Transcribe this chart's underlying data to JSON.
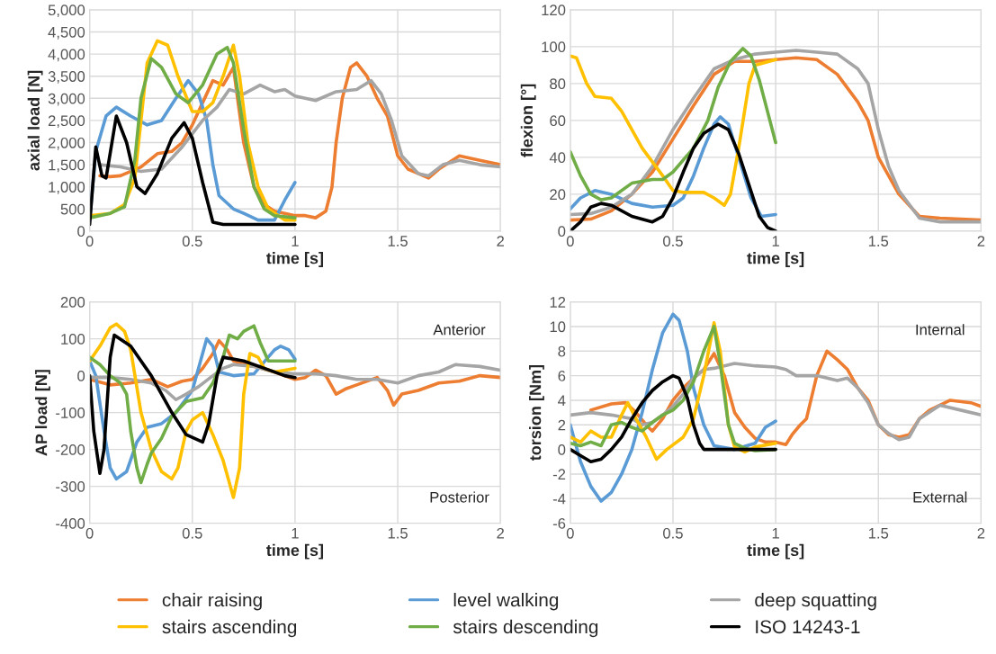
{
  "chart_data": [
    {
      "type": "line",
      "xlabel": "time [s]",
      "ylabel": "axial load [N]",
      "xlim": [
        0,
        2
      ],
      "xticks": [
        0,
        0.5,
        1,
        1.5,
        2
      ],
      "ylim": [
        0,
        5000
      ],
      "yticks": [
        0,
        500,
        {
          "value": 1000,
          "label": "1,000"
        },
        {
          "value": 1500,
          "label": "1,500"
        },
        {
          "value": 2000,
          "label": "2,000"
        },
        {
          "value": 2500,
          "label": "2,500"
        },
        {
          "value": 3000,
          "label": "3,000"
        },
        {
          "value": 3500,
          "label": "3,500"
        },
        {
          "value": 4000,
          "label": "4,000"
        },
        {
          "value": 4500,
          "label": "4,500"
        },
        {
          "value": 5000,
          "label": "5,000"
        }
      ],
      "grid": true,
      "legend": "bottom",
      "series": [
        {
          "name": "chair raising",
          "color": "#ed7d31",
          "x": [
            0.05,
            0.1,
            0.15,
            0.25,
            0.33,
            0.4,
            0.45,
            0.5,
            0.6,
            0.65,
            0.7,
            0.72,
            0.75,
            0.8,
            0.85,
            0.9,
            1.0,
            1.05,
            1.1,
            1.15,
            1.18,
            1.2,
            1.23,
            1.27,
            1.3,
            1.35,
            1.4,
            1.45,
            1.5,
            1.55,
            1.6,
            1.65,
            1.7,
            1.8,
            1.9,
            2.0
          ],
          "values": [
            1250,
            1230,
            1250,
            1450,
            1750,
            1800,
            2000,
            2400,
            3400,
            3300,
            3700,
            3000,
            2000,
            1000,
            600,
            450,
            350,
            350,
            300,
            450,
            1000,
            2000,
            3000,
            3700,
            3800,
            3500,
            3000,
            2600,
            1700,
            1400,
            1300,
            1200,
            1400,
            1700,
            1600,
            1500
          ]
        },
        {
          "name": "level walking",
          "color": "#5b9bd5",
          "x": [
            0,
            0.03,
            0.08,
            0.13,
            0.2,
            0.28,
            0.35,
            0.42,
            0.48,
            0.53,
            0.57,
            0.6,
            0.63,
            0.7,
            0.75,
            0.82,
            0.9,
            0.95,
            1.0
          ],
          "values": [
            250,
            1800,
            2600,
            2800,
            2600,
            2400,
            2500,
            3000,
            3400,
            3100,
            2500,
            1500,
            800,
            500,
            400,
            250,
            250,
            700,
            1100
          ]
        },
        {
          "name": "deep squatting",
          "color": "#a5a5a5",
          "x": [
            0.05,
            0.15,
            0.25,
            0.35,
            0.45,
            0.55,
            0.62,
            0.68,
            0.75,
            0.83,
            0.9,
            0.95,
            1.0,
            1.1,
            1.2,
            1.3,
            1.37,
            1.42,
            1.47,
            1.52,
            1.6,
            1.65,
            1.72,
            1.8,
            1.9,
            2.0
          ],
          "values": [
            1500,
            1450,
            1350,
            1400,
            1900,
            2500,
            2800,
            3200,
            3100,
            3300,
            3150,
            3200,
            3050,
            2950,
            3150,
            3200,
            3400,
            3100,
            2500,
            1700,
            1300,
            1250,
            1500,
            1600,
            1500,
            1450
          ]
        },
        {
          "name": "stairs ascending",
          "color": "#ffc000",
          "x": [
            0,
            0.1,
            0.17,
            0.22,
            0.25,
            0.28,
            0.33,
            0.38,
            0.43,
            0.5,
            0.55,
            0.6,
            0.65,
            0.7,
            0.73,
            0.77,
            0.82,
            0.87,
            0.95,
            1.0
          ],
          "values": [
            350,
            400,
            600,
            1200,
            2500,
            3800,
            4300,
            4200,
            3500,
            2700,
            2700,
            2900,
            3500,
            4200,
            3500,
            2000,
            1000,
            500,
            250,
            250
          ]
        },
        {
          "name": "stairs descending",
          "color": "#70ad47",
          "x": [
            0,
            0.1,
            0.17,
            0.22,
            0.25,
            0.3,
            0.35,
            0.42,
            0.48,
            0.55,
            0.62,
            0.67,
            0.7,
            0.75,
            0.8,
            0.85,
            0.9,
            1.0
          ],
          "values": [
            300,
            400,
            550,
            1600,
            3000,
            3900,
            3700,
            3100,
            2900,
            3300,
            4000,
            4150,
            3800,
            2300,
            1000,
            500,
            350,
            300
          ]
        },
        {
          "name": "ISO 14243-1",
          "color": "#000000",
          "x": [
            0,
            0.03,
            0.06,
            0.08,
            0.13,
            0.18,
            0.23,
            0.27,
            0.33,
            0.4,
            0.46,
            0.5,
            0.55,
            0.6,
            0.65,
            1.0
          ],
          "values": [
            150,
            1900,
            1250,
            1200,
            2600,
            2000,
            1000,
            850,
            1300,
            2100,
            2450,
            2100,
            1100,
            200,
            150,
            150
          ]
        }
      ]
    },
    {
      "type": "line",
      "xlabel": "time [s]",
      "ylabel": "flexion [°]",
      "xlim": [
        0,
        2
      ],
      "xticks": [
        0,
        0.5,
        1,
        1.5,
        2
      ],
      "ylim": [
        0,
        120
      ],
      "yticks": [
        0,
        20,
        40,
        60,
        80,
        100,
        120
      ],
      "grid": true,
      "legend": "bottom",
      "series": [
        {
          "name": "chair raising",
          "color": "#ed7d31",
          "x": [
            0,
            0.1,
            0.2,
            0.3,
            0.4,
            0.5,
            0.6,
            0.7,
            0.8,
            0.9,
            1.0,
            1.1,
            1.2,
            1.3,
            1.4,
            1.45,
            1.5,
            1.55,
            1.6,
            1.7,
            1.8,
            2.0
          ],
          "values": [
            6,
            6.5,
            11,
            20,
            32,
            50,
            68,
            85,
            92,
            92,
            93,
            94,
            93,
            85,
            70,
            60,
            40,
            30,
            20,
            8,
            7,
            6
          ]
        },
        {
          "name": "level walking",
          "color": "#5b9bd5",
          "x": [
            0,
            0.05,
            0.12,
            0.2,
            0.3,
            0.4,
            0.5,
            0.55,
            0.6,
            0.65,
            0.7,
            0.73,
            0.77,
            0.82,
            0.88,
            0.93,
            1.0
          ],
          "values": [
            12,
            18,
            22,
            20,
            15,
            13,
            14,
            18,
            30,
            45,
            58,
            62,
            58,
            40,
            18,
            8,
            9
          ]
        },
        {
          "name": "deep squatting",
          "color": "#a5a5a5",
          "x": [
            0,
            0.1,
            0.2,
            0.3,
            0.4,
            0.5,
            0.6,
            0.7,
            0.8,
            0.9,
            1.0,
            1.1,
            1.2,
            1.3,
            1.4,
            1.45,
            1.5,
            1.55,
            1.6,
            1.7,
            1.8,
            2.0
          ],
          "values": [
            9,
            9.5,
            13,
            20,
            35,
            55,
            72,
            88,
            93,
            96,
            97,
            98,
            97,
            96,
            88,
            80,
            55,
            35,
            22,
            7,
            5,
            5
          ]
        },
        {
          "name": "stairs ascending",
          "color": "#ffc000",
          "x": [
            0,
            0.03,
            0.08,
            0.12,
            0.2,
            0.25,
            0.35,
            0.45,
            0.5,
            0.55,
            0.65,
            0.7,
            0.75,
            0.78,
            0.82,
            0.87,
            0.9,
            1.0
          ],
          "values": [
            95,
            94,
            80,
            73,
            72,
            65,
            45,
            30,
            22,
            21,
            21,
            18,
            14,
            20,
            45,
            80,
            90,
            93
          ]
        },
        {
          "name": "stairs descending",
          "color": "#70ad47",
          "x": [
            0,
            0.05,
            0.1,
            0.15,
            0.2,
            0.3,
            0.4,
            0.45,
            0.5,
            0.6,
            0.67,
            0.72,
            0.78,
            0.84,
            0.88,
            0.92,
            0.96,
            1.0
          ],
          "values": [
            43,
            30,
            20,
            17,
            18,
            26,
            28,
            28,
            32,
            45,
            60,
            78,
            92,
            99,
            95,
            82,
            65,
            48
          ]
        },
        {
          "name": "ISO 14243-1",
          "color": "#000000",
          "x": [
            0,
            0.05,
            0.1,
            0.15,
            0.2,
            0.3,
            0.4,
            0.45,
            0.5,
            0.55,
            0.6,
            0.65,
            0.72,
            0.77,
            0.82,
            0.87,
            0.92,
            0.96,
            1.0
          ],
          "values": [
            0,
            5,
            13,
            15,
            14,
            8,
            5,
            8,
            18,
            32,
            45,
            53,
            58,
            55,
            42,
            25,
            8,
            2,
            0
          ]
        }
      ]
    },
    {
      "type": "line",
      "xlabel": "time [s]",
      "ylabel": "AP load [N]",
      "xlim": [
        0,
        2
      ],
      "xticks": [
        0,
        0.5,
        1,
        1.5,
        2
      ],
      "ylim": [
        -400,
        200
      ],
      "yticks": [
        -400,
        -300,
        -200,
        -100,
        0,
        100,
        200
      ],
      "grid": true,
      "legend": "bottom",
      "annotations": [
        "Anterior",
        "Posterior"
      ],
      "series": [
        {
          "name": "chair raising",
          "color": "#ed7d31",
          "x": [
            0,
            0.1,
            0.2,
            0.3,
            0.38,
            0.45,
            0.5,
            0.55,
            0.6,
            0.63,
            0.67,
            0.7,
            0.8,
            0.9,
            1.0,
            1.05,
            1.1,
            1.15,
            1.2,
            1.25,
            1.3,
            1.4,
            1.45,
            1.48,
            1.52,
            1.6,
            1.7,
            1.8,
            1.9,
            2.0
          ],
          "values": [
            -10,
            -25,
            -20,
            -10,
            -30,
            -15,
            -10,
            20,
            60,
            95,
            70,
            40,
            25,
            10,
            -10,
            -5,
            15,
            0,
            -50,
            -35,
            -25,
            -5,
            -40,
            -80,
            -50,
            -40,
            -20,
            -15,
            0,
            -5
          ]
        },
        {
          "name": "level walking",
          "color": "#5b9bd5",
          "x": [
            0,
            0.03,
            0.07,
            0.1,
            0.13,
            0.18,
            0.23,
            0.28,
            0.35,
            0.42,
            0.5,
            0.53,
            0.57,
            0.6,
            0.63,
            0.7,
            0.8,
            0.9,
            0.93,
            0.97,
            1.0
          ],
          "values": [
            40,
            0,
            -150,
            -250,
            -280,
            -260,
            -180,
            -140,
            -130,
            -100,
            -40,
            20,
            100,
            80,
            10,
            0,
            5,
            70,
            80,
            70,
            45
          ]
        },
        {
          "name": "deep squatting",
          "color": "#a5a5a5",
          "x": [
            0,
            0.1,
            0.2,
            0.3,
            0.37,
            0.42,
            0.47,
            0.53,
            0.6,
            0.65,
            0.7,
            0.8,
            0.9,
            1.0,
            1.1,
            1.2,
            1.3,
            1.4,
            1.5,
            1.6,
            1.7,
            1.78,
            1.9,
            2.0
          ],
          "values": [
            -5,
            -5,
            -10,
            -20,
            -40,
            -65,
            -50,
            -30,
            0,
            20,
            30,
            25,
            10,
            5,
            5,
            0,
            -10,
            -10,
            -20,
            0,
            10,
            30,
            25,
            15
          ]
        },
        {
          "name": "stairs ascending",
          "color": "#ffc000",
          "x": [
            0,
            0.05,
            0.1,
            0.13,
            0.17,
            0.2,
            0.25,
            0.3,
            0.35,
            0.4,
            0.43,
            0.47,
            0.5,
            0.55,
            0.6,
            0.65,
            0.7,
            0.73,
            0.75,
            0.78,
            0.82,
            0.85,
            0.9,
            1.0
          ],
          "values": [
            40,
            80,
            130,
            140,
            120,
            70,
            -100,
            -200,
            -260,
            -280,
            -250,
            -150,
            -120,
            -100,
            -160,
            -230,
            -330,
            -250,
            -50,
            60,
            50,
            20,
            10,
            20
          ]
        },
        {
          "name": "stairs descending",
          "color": "#70ad47",
          "x": [
            0,
            0.05,
            0.1,
            0.15,
            0.18,
            0.2,
            0.23,
            0.25,
            0.28,
            0.3,
            0.35,
            0.4,
            0.47,
            0.55,
            0.6,
            0.65,
            0.68,
            0.72,
            0.75,
            0.8,
            0.83,
            0.87,
            0.92,
            1.0
          ],
          "values": [
            50,
            30,
            0,
            -20,
            -50,
            -150,
            -250,
            -290,
            -240,
            -210,
            -170,
            -110,
            -70,
            -60,
            -20,
            50,
            110,
            100,
            120,
            135,
            90,
            40,
            40,
            40
          ]
        },
        {
          "name": "ISO 14243-1",
          "color": "#000000",
          "x": [
            0,
            0.02,
            0.05,
            0.07,
            0.1,
            0.12,
            0.2,
            0.3,
            0.4,
            0.47,
            0.55,
            0.58,
            0.62,
            0.65,
            0.75,
            0.85,
            0.95,
            1.0
          ],
          "values": [
            0,
            -150,
            -265,
            -200,
            50,
            110,
            80,
            0,
            -100,
            -160,
            -180,
            -130,
            0,
            50,
            40,
            20,
            0,
            -5
          ]
        }
      ]
    },
    {
      "type": "line",
      "xlabel": "time [s]",
      "ylabel": "torsion [Nm]",
      "xlim": [
        0,
        2
      ],
      "xticks": [
        0,
        0.5,
        1,
        1.5,
        2
      ],
      "ylim": [
        -6,
        12
      ],
      "yticks": [
        -6,
        -4,
        -2,
        0,
        2,
        4,
        6,
        8,
        10,
        12
      ],
      "grid": true,
      "legend": "bottom",
      "annotations": [
        "Internal",
        "External"
      ],
      "series": [
        {
          "name": "chair raising",
          "color": "#ed7d31",
          "x": [
            0.1,
            0.2,
            0.27,
            0.32,
            0.38,
            0.4,
            0.45,
            0.5,
            0.55,
            0.6,
            0.65,
            0.7,
            0.75,
            0.8,
            0.85,
            0.9,
            0.95,
            1.0,
            1.05,
            1.08,
            1.12,
            1.15,
            1.2,
            1.25,
            1.3,
            1.35,
            1.4,
            1.45,
            1.5,
            1.55,
            1.6,
            1.65,
            1.7,
            1.75,
            1.85,
            1.95,
            2.0
          ],
          "values": [
            3.2,
            3.7,
            3.8,
            3.0,
            1.8,
            1.5,
            2.5,
            4,
            5,
            5.8,
            6.5,
            7.8,
            6,
            3,
            1.8,
            0.9,
            0.6,
            0.6,
            0.4,
            1.2,
            2,
            2.5,
            6,
            8,
            7.3,
            6.5,
            5,
            4,
            2,
            1.2,
            1.0,
            1.2,
            2.5,
            3.2,
            4.0,
            3.8,
            3.5
          ]
        },
        {
          "name": "level walking",
          "color": "#5b9bd5",
          "x": [
            0,
            0.05,
            0.1,
            0.15,
            0.2,
            0.25,
            0.3,
            0.35,
            0.4,
            0.45,
            0.5,
            0.53,
            0.57,
            0.6,
            0.65,
            0.7,
            0.8,
            0.9,
            0.95,
            1.0
          ],
          "values": [
            2,
            -1,
            -3,
            -4.2,
            -3.5,
            -2,
            0,
            3,
            6.5,
            9.5,
            11,
            10.5,
            8,
            5,
            2,
            0.3,
            0,
            0.5,
            1.8,
            2.3
          ]
        },
        {
          "name": "deep squatting",
          "color": "#a5a5a5",
          "x": [
            0,
            0.1,
            0.2,
            0.3,
            0.35,
            0.4,
            0.45,
            0.5,
            0.55,
            0.6,
            0.65,
            0.7,
            0.8,
            0.9,
            1.0,
            1.05,
            1.1,
            1.2,
            1.3,
            1.35,
            1.4,
            1.45,
            1.5,
            1.55,
            1.6,
            1.65,
            1.7,
            1.8,
            1.9,
            2.0
          ],
          "values": [
            2.8,
            3.0,
            2.8,
            2.5,
            2.0,
            2.2,
            2.8,
            3.5,
            4.5,
            5.8,
            6.5,
            6.6,
            7,
            6.8,
            6.7,
            6.5,
            6,
            6,
            5.6,
            5.8,
            5,
            3.8,
            2,
            1.3,
            0.8,
            1.0,
            2.5,
            3.6,
            3.2,
            2.8
          ]
        },
        {
          "name": "stairs ascending",
          "color": "#ffc000",
          "x": [
            0,
            0.05,
            0.1,
            0.15,
            0.2,
            0.25,
            0.28,
            0.32,
            0.37,
            0.42,
            0.47,
            0.55,
            0.6,
            0.65,
            0.7,
            0.73,
            0.77,
            0.8,
            0.85,
            0.9,
            1.0
          ],
          "values": [
            1,
            0.6,
            1.5,
            1.0,
            1.0,
            2.8,
            3.8,
            2.5,
            1.0,
            -0.8,
            0,
            1,
            2.5,
            6,
            10.3,
            8,
            2,
            0.2,
            -0.2,
            0.2,
            0.5
          ]
        },
        {
          "name": "stairs descending",
          "color": "#70ad47",
          "x": [
            0,
            0.05,
            0.1,
            0.15,
            0.2,
            0.25,
            0.3,
            0.35,
            0.4,
            0.45,
            0.5,
            0.55,
            0.6,
            0.65,
            0.7,
            0.73,
            0.77,
            0.8,
            0.85,
            0.9,
            1.0
          ],
          "values": [
            0.5,
            0.3,
            0.6,
            0.3,
            2,
            2.2,
            1.8,
            1.5,
            2.2,
            2.8,
            3.2,
            4,
            5.5,
            8,
            10,
            7,
            2,
            0.5,
            0.1,
            -0.1,
            0
          ]
        },
        {
          "name": "ISO 14243-1",
          "color": "#000000",
          "x": [
            0,
            0.05,
            0.1,
            0.15,
            0.2,
            0.25,
            0.3,
            0.35,
            0.4,
            0.45,
            0.5,
            0.53,
            0.57,
            0.6,
            0.63,
            0.65,
            0.8,
            1.0
          ],
          "values": [
            0,
            -0.5,
            -1,
            -0.8,
            0,
            1,
            2.5,
            3.8,
            4.8,
            5.5,
            6,
            5.8,
            4.2,
            2,
            0.5,
            0,
            0,
            0
          ]
        }
      ]
    }
  ]
}
